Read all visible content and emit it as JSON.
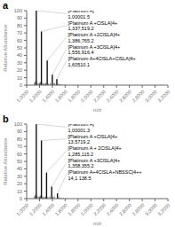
{
  "chart_data": [
    {
      "type": "stem",
      "title": "a",
      "xlabel": "m/z",
      "ylabel": "Relative Abundance",
      "color": "#111111",
      "xlim": [
        10000,
        32000
      ],
      "ylim": [
        0,
        100
      ],
      "xticks": [
        {
          "value": 10000,
          "label": "1,0000"
        },
        {
          "value": 12000,
          "label": "1,2000"
        },
        {
          "value": 14000,
          "label": "1,4000"
        },
        {
          "value": 16000,
          "label": "1,6000"
        },
        {
          "value": 18000,
          "label": "1,8000"
        },
        {
          "value": 20000,
          "label": "2,0000"
        },
        {
          "value": 22000,
          "label": "2,2000"
        },
        {
          "value": 24000,
          "label": "2,4000"
        },
        {
          "value": 26000,
          "label": "2,6000"
        },
        {
          "value": 28000,
          "label": "2,8000"
        },
        {
          "value": 30000,
          "label": "3,0000"
        },
        {
          "value": 32000,
          "label": "3,2000"
        }
      ],
      "yticks": [
        0,
        10,
        20,
        30,
        40,
        50,
        60,
        70,
        80,
        90,
        100
      ],
      "x": [
        11500,
        12300,
        13200,
        14000,
        14700
      ],
      "values": [
        100,
        72,
        33,
        14,
        8
      ],
      "annotations": [
        {
          "x": 11500,
          "y": 100,
          "text": [
            "[Platinum A]",
            "1,00001.5"
          ]
        },
        {
          "x": 12300,
          "y": 72,
          "text": [
            "[Platinum A +ClSLA]4+",
            "1,337,519.2"
          ]
        },
        {
          "x": 13200,
          "y": 33,
          "text": [
            "[Platinum A +2ClSLA]4+",
            "1,386,765.2"
          ]
        },
        {
          "x": 14000,
          "y": 14,
          "text": [
            "[Platinum A +3ClSLA]4+",
            "1,556,916.4"
          ]
        },
        {
          "x": 14700,
          "y": 8,
          "text": [
            "[Platinum A+4ClSLA+ClSLA]4+",
            "1,60510.1"
          ]
        }
      ],
      "noise": {
        "x": [
          11200,
          11350,
          11650,
          11900,
          12000,
          12150,
          12500,
          12700,
          12900,
          13000,
          13400,
          13700,
          14200,
          14400,
          14900,
          15200,
          15500,
          16000
        ],
        "values": [
          3,
          5,
          4,
          2,
          3,
          4,
          3,
          2,
          2,
          3,
          2,
          3,
          2,
          3,
          2,
          1.5,
          1,
          1
        ]
      }
    },
    {
      "type": "stem",
      "title": "b",
      "xlabel": "m/z",
      "ylabel": "Relative Abundance",
      "color": "#111111",
      "xlim": [
        10000,
        32000
      ],
      "ylim": [
        0,
        100
      ],
      "xticks": [
        {
          "value": 10000,
          "label": "1,0000"
        },
        {
          "value": 12000,
          "label": "1,2000"
        },
        {
          "value": 14000,
          "label": "1,4000"
        },
        {
          "value": 16000,
          "label": "1,6000"
        },
        {
          "value": 18000,
          "label": "1,8000"
        },
        {
          "value": 20000,
          "label": "2,0000"
        },
        {
          "value": 22000,
          "label": "2,2000"
        },
        {
          "value": 24000,
          "label": "2,4000"
        },
        {
          "value": 26000,
          "label": "2,6000"
        },
        {
          "value": 28000,
          "label": "2,8000"
        },
        {
          "value": 30000,
          "label": "3,0000"
        },
        {
          "value": 32000,
          "label": "3,2000"
        }
      ],
      "yticks": [
        0,
        10,
        20,
        30,
        40,
        50,
        60,
        70,
        80,
        90,
        100
      ],
      "x": [
        11500,
        12300,
        13100,
        13900,
        14800
      ],
      "values": [
        100,
        78,
        35,
        16,
        7
      ],
      "annotations": [
        {
          "x": 11500,
          "y": 100,
          "text": [
            "[Platinum A]",
            "1,00001.3"
          ]
        },
        {
          "x": 12300,
          "y": 78,
          "text": [
            "[Platinum A +ClSLA]4+",
            "13,5719.2"
          ]
        },
        {
          "x": 13100,
          "y": 35,
          "text": [
            "[Platinum A + 2ClSLA]4+",
            "1,285,115.2"
          ]
        },
        {
          "x": 13900,
          "y": 16,
          "text": [
            "[Platinum A +3ClSLA]4+",
            "1,358,355.2"
          ]
        },
        {
          "x": 14800,
          "y": 7,
          "text": [
            "[Platinum A+4ClSLA+NBSSC]4++",
            "14,1 138.5"
          ]
        }
      ],
      "noise": {
        "x": [
          11200,
          11350,
          11650,
          11900,
          12000,
          12150,
          12500,
          12700,
          12900,
          13000,
          13300,
          13600,
          14100,
          14300,
          15000,
          15300,
          15700,
          16200
        ],
        "values": [
          3,
          5,
          4,
          2,
          3,
          4,
          3,
          2,
          2,
          3,
          2,
          3,
          2,
          3,
          2,
          1.5,
          1,
          1
        ]
      }
    }
  ]
}
